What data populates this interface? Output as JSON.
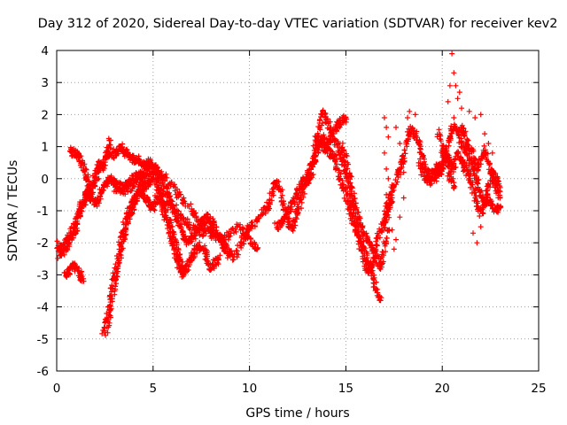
{
  "chart_data": {
    "type": "scatter",
    "title": "Day 312 of 2020, Sidereal Day-to-day VTEC variation (SDTVAR) for receiver kev2",
    "xlabel": "GPS time / hours",
    "ylabel": "SDTVAR / TECUs",
    "xlim": [
      0,
      25
    ],
    "ylim": [
      -6,
      4
    ],
    "xticks": [
      0,
      5,
      10,
      15,
      20,
      25
    ],
    "yticks": [
      -6,
      -5,
      -4,
      -3,
      -2,
      -1,
      0,
      1,
      2,
      3,
      4
    ],
    "grid": true,
    "marker": "+",
    "series_color": "#ff0000",
    "traces": [
      [
        [
          0.0,
          -2.0
        ],
        [
          0.3,
          -2.3
        ],
        [
          0.6,
          -2.1
        ],
        [
          0.8,
          -1.8
        ],
        [
          1.0,
          -1.6
        ],
        [
          1.2,
          -1.0
        ],
        [
          1.4,
          -0.8
        ],
        [
          1.6,
          -0.4
        ],
        [
          1.8,
          -0.6
        ],
        [
          2.0,
          0.2
        ],
        [
          2.2,
          0.5
        ],
        [
          2.4,
          0.3
        ],
        [
          2.6,
          0.8
        ],
        [
          2.8,
          1.2
        ]
      ],
      [
        [
          0.1,
          -2.4
        ],
        [
          0.3,
          -2.2
        ],
        [
          0.5,
          -2.0
        ],
        [
          0.7,
          -1.8
        ],
        [
          0.9,
          -1.5
        ],
        [
          1.1,
          -1.1
        ],
        [
          1.3,
          -0.8
        ],
        [
          1.5,
          -0.6
        ],
        [
          1.7,
          -0.4
        ],
        [
          1.9,
          -0.2
        ],
        [
          2.1,
          0.1
        ],
        [
          2.3,
          0.4
        ],
        [
          2.5,
          0.6
        ]
      ],
      [
        [
          0.4,
          -3.0
        ],
        [
          0.6,
          -2.9
        ],
        [
          0.8,
          -2.7
        ],
        [
          1.0,
          -2.8
        ],
        [
          1.2,
          -3.0
        ],
        [
          1.4,
          -3.2
        ]
      ],
      [
        [
          0.7,
          0.9
        ],
        [
          0.9,
          0.8
        ],
        [
          1.1,
          0.7
        ],
        [
          1.3,
          0.5
        ],
        [
          1.5,
          0.2
        ],
        [
          1.6,
          -0.1
        ],
        [
          1.7,
          -0.3
        ],
        [
          1.8,
          -0.6
        ],
        [
          2.0,
          -0.8
        ],
        [
          2.2,
          -0.6
        ],
        [
          2.4,
          -0.3
        ],
        [
          2.6,
          -0.1
        ],
        [
          2.8,
          0.0
        ],
        [
          3.0,
          -0.1
        ],
        [
          3.2,
          -0.2
        ],
        [
          3.4,
          -0.3
        ],
        [
          3.6,
          -0.2
        ],
        [
          3.8,
          -0.1
        ],
        [
          4.0,
          0.0
        ],
        [
          4.2,
          0.1
        ],
        [
          4.4,
          0.1
        ],
        [
          4.6,
          0.3
        ],
        [
          4.8,
          0.5
        ],
        [
          5.0,
          0.4
        ],
        [
          5.2,
          0.2
        ],
        [
          5.4,
          0.0
        ],
        [
          5.6,
          -0.3
        ],
        [
          5.8,
          -0.6
        ],
        [
          6.0,
          -0.9
        ],
        [
          6.2,
          -1.2
        ],
        [
          6.4,
          -1.5
        ],
        [
          6.6,
          -1.8
        ],
        [
          6.8,
          -2.0
        ],
        [
          7.0,
          -1.9
        ],
        [
          7.2,
          -1.7
        ],
        [
          7.4,
          -1.5
        ],
        [
          7.6,
          -1.3
        ],
        [
          7.8,
          -1.2
        ],
        [
          8.0,
          -1.3
        ],
        [
          8.2,
          -1.5
        ],
        [
          8.4,
          -1.8
        ],
        [
          8.6,
          -2.0
        ],
        [
          8.8,
          -2.2
        ],
        [
          9.0,
          -2.4
        ]
      ],
      [
        [
          2.6,
          0.8
        ],
        [
          2.8,
          0.7
        ],
        [
          3.0,
          0.8
        ],
        [
          3.2,
          0.9
        ],
        [
          3.4,
          1.0
        ],
        [
          3.6,
          0.8
        ],
        [
          3.8,
          0.7
        ],
        [
          4.0,
          0.6
        ],
        [
          4.2,
          0.6
        ],
        [
          4.4,
          0.5
        ],
        [
          4.6,
          0.4
        ],
        [
          4.8,
          0.3
        ]
      ],
      [
        [
          2.4,
          -4.9
        ],
        [
          2.6,
          -4.3
        ],
        [
          2.8,
          -3.7
        ],
        [
          3.0,
          -3.0
        ],
        [
          3.2,
          -2.4
        ],
        [
          3.4,
          -1.8
        ],
        [
          3.6,
          -1.3
        ],
        [
          3.8,
          -0.9
        ],
        [
          4.0,
          -0.6
        ],
        [
          4.2,
          -0.4
        ],
        [
          4.4,
          -0.3
        ],
        [
          4.6,
          -0.2
        ],
        [
          4.8,
          -0.1
        ],
        [
          5.0,
          0.1
        ],
        [
          5.2,
          -0.1
        ],
        [
          5.4,
          -0.4
        ],
        [
          5.6,
          -0.8
        ],
        [
          5.8,
          -1.3
        ],
        [
          6.0,
          -1.7
        ],
        [
          6.2,
          -2.2
        ],
        [
          6.4,
          -2.6
        ],
        [
          6.6,
          -2.9
        ],
        [
          6.8,
          -2.7
        ],
        [
          7.0,
          -2.4
        ],
        [
          7.2,
          -2.2
        ],
        [
          7.4,
          -2.1
        ],
        [
          7.6,
          -2.2
        ],
        [
          7.8,
          -2.5
        ],
        [
          8.0,
          -2.8
        ],
        [
          8.2,
          -2.6
        ],
        [
          8.4,
          -2.5
        ]
      ],
      [
        [
          2.6,
          -4.8
        ],
        [
          2.8,
          -4.0
        ],
        [
          3.0,
          -3.3
        ],
        [
          3.2,
          -2.7
        ],
        [
          3.4,
          -2.1
        ],
        [
          3.6,
          -1.6
        ],
        [
          3.8,
          -1.1
        ],
        [
          4.0,
          -0.8
        ],
        [
          4.2,
          -0.6
        ],
        [
          4.4,
          -0.4
        ],
        [
          4.6,
          -0.6
        ],
        [
          4.8,
          -0.8
        ],
        [
          5.0,
          -0.9
        ],
        [
          5.2,
          -0.6
        ],
        [
          5.4,
          -0.8
        ],
        [
          5.6,
          -1.1
        ],
        [
          5.8,
          -1.5
        ],
        [
          6.0,
          -1.9
        ],
        [
          6.2,
          -2.4
        ],
        [
          6.4,
          -2.8
        ],
        [
          6.6,
          -3.0
        ]
      ],
      [
        [
          3.0,
          -0.3
        ],
        [
          3.4,
          -0.4
        ],
        [
          3.8,
          -0.3
        ],
        [
          4.2,
          -0.1
        ],
        [
          4.6,
          0.1
        ],
        [
          5.0,
          0.3
        ],
        [
          5.4,
          0.2
        ],
        [
          5.8,
          -0.1
        ],
        [
          6.2,
          -0.4
        ],
        [
          6.6,
          -0.7
        ],
        [
          7.0,
          -1.0
        ],
        [
          7.4,
          -1.3
        ],
        [
          7.8,
          -1.6
        ],
        [
          8.2,
          -1.8
        ],
        [
          8.6,
          -1.9
        ],
        [
          9.0,
          -1.7
        ],
        [
          9.4,
          -1.5
        ],
        [
          9.8,
          -1.7
        ],
        [
          10.2,
          -2.0
        ],
        [
          10.4,
          -2.2
        ]
      ],
      [
        [
          5.2,
          -0.3
        ],
        [
          5.6,
          -0.5
        ],
        [
          6.0,
          -0.8
        ],
        [
          6.4,
          -1.2
        ],
        [
          6.8,
          -1.4
        ],
        [
          7.2,
          -1.6
        ],
        [
          7.6,
          -1.7
        ],
        [
          8.0,
          -1.6
        ],
        [
          8.4,
          -1.8
        ],
        [
          8.8,
          -2.2
        ],
        [
          9.2,
          -2.5
        ],
        [
          9.6,
          -2.0
        ],
        [
          9.8,
          -1.7
        ],
        [
          10.0,
          -1.5
        ],
        [
          10.4,
          -1.3
        ],
        [
          10.8,
          -1.0
        ],
        [
          11.0,
          -0.8
        ],
        [
          11.2,
          -0.4
        ],
        [
          11.4,
          -0.1
        ],
        [
          11.6,
          -0.4
        ],
        [
          11.8,
          -0.9
        ],
        [
          12.0,
          -1.3
        ],
        [
          12.2,
          -1.6
        ],
        [
          12.4,
          -1.2
        ],
        [
          12.6,
          -0.8
        ],
        [
          12.8,
          -0.4
        ],
        [
          13.0,
          0.0
        ],
        [
          13.2,
          0.4
        ],
        [
          13.4,
          0.9
        ],
        [
          13.6,
          1.4
        ],
        [
          13.8,
          2.1
        ],
        [
          14.0,
          1.9
        ],
        [
          14.2,
          1.5
        ],
        [
          14.4,
          1.2
        ],
        [
          14.6,
          1.0
        ],
        [
          14.8,
          0.6
        ],
        [
          15.0,
          0.2
        ],
        [
          15.2,
          -0.4
        ],
        [
          15.4,
          -1.0
        ],
        [
          15.6,
          -1.6
        ],
        [
          15.8,
          -2.2
        ],
        [
          16.0,
          -2.7
        ],
        [
          16.2,
          -2.9
        ],
        [
          16.4,
          -2.6
        ],
        [
          16.6,
          -2.0
        ],
        [
          16.8,
          -1.6
        ],
        [
          17.0,
          -1.4
        ],
        [
          17.2,
          -1.0
        ],
        [
          17.4,
          -0.6
        ]
      ],
      [
        [
          11.4,
          -1.5
        ],
        [
          11.6,
          -1.4
        ],
        [
          11.8,
          -1.2
        ],
        [
          12.0,
          -1.0
        ],
        [
          12.2,
          -0.8
        ],
        [
          12.4,
          -0.6
        ],
        [
          12.6,
          -0.3
        ],
        [
          12.8,
          0.0
        ],
        [
          13.0,
          -0.1
        ],
        [
          13.2,
          0.1
        ],
        [
          13.4,
          0.6
        ],
        [
          13.6,
          1.0
        ],
        [
          13.8,
          1.3
        ],
        [
          14.0,
          1.1
        ],
        [
          14.2,
          1.3
        ],
        [
          14.4,
          1.5
        ],
        [
          14.6,
          1.7
        ],
        [
          14.8,
          1.8
        ],
        [
          15.0,
          1.9
        ]
      ],
      [
        [
          13.4,
          1.3
        ],
        [
          13.6,
          1.1
        ],
        [
          13.8,
          1.0
        ],
        [
          14.0,
          0.9
        ],
        [
          14.2,
          0.8
        ],
        [
          14.4,
          0.6
        ],
        [
          14.6,
          0.2
        ],
        [
          14.8,
          -0.2
        ],
        [
          15.0,
          -0.5
        ],
        [
          15.2,
          -0.9
        ],
        [
          15.4,
          -1.3
        ],
        [
          15.6,
          -1.7
        ],
        [
          15.8,
          -2.0
        ],
        [
          16.0,
          -2.3
        ],
        [
          16.2,
          -2.6
        ],
        [
          16.4,
          -3.1
        ],
        [
          16.6,
          -3.5
        ],
        [
          16.8,
          -3.8
        ]
      ],
      [
        [
          14.8,
          1.0
        ],
        [
          15.0,
          0.6
        ],
        [
          15.2,
          0.0
        ],
        [
          15.4,
          -0.6
        ],
        [
          15.6,
          -1.1
        ],
        [
          15.8,
          -1.5
        ],
        [
          16.0,
          -1.8
        ],
        [
          16.2,
          -2.0
        ],
        [
          16.4,
          -2.2
        ],
        [
          16.6,
          -2.5
        ],
        [
          16.8,
          -2.8
        ],
        [
          17.0,
          -2.2
        ],
        [
          17.2,
          -1.6
        ]
      ],
      [
        [
          17.0,
          -1.3
        ],
        [
          17.2,
          -0.8
        ],
        [
          17.4,
          -0.4
        ],
        [
          17.6,
          0.0
        ],
        [
          17.8,
          0.3
        ],
        [
          18.0,
          0.6
        ],
        [
          18.2,
          1.2
        ],
        [
          18.4,
          1.6
        ],
        [
          18.6,
          1.4
        ],
        [
          18.8,
          1.0
        ],
        [
          19.0,
          0.6
        ],
        [
          19.2,
          0.3
        ],
        [
          19.4,
          0.1
        ],
        [
          19.6,
          0.2
        ],
        [
          19.8,
          0.4
        ],
        [
          20.0,
          0.2
        ],
        [
          20.2,
          0.9
        ],
        [
          20.4,
          1.3
        ],
        [
          20.6,
          1.7
        ],
        [
          20.8,
          1.5
        ],
        [
          21.0,
          1.1
        ],
        [
          21.2,
          0.9
        ],
        [
          21.4,
          0.6
        ],
        [
          21.6,
          0.3
        ],
        [
          21.8,
          0.0
        ],
        [
          22.0,
          -0.5
        ],
        [
          22.2,
          -0.8
        ],
        [
          22.4,
          -0.6
        ],
        [
          22.6,
          -0.9
        ],
        [
          22.8,
          -1.0
        ],
        [
          23.0,
          -0.9
        ]
      ],
      [
        [
          18.8,
          0.5
        ],
        [
          19.0,
          0.2
        ],
        [
          19.2,
          0.0
        ],
        [
          19.4,
          -0.1
        ],
        [
          19.6,
          0.0
        ],
        [
          19.8,
          0.1
        ],
        [
          20.0,
          0.4
        ],
        [
          20.2,
          0.8
        ],
        [
          20.4,
          0.5
        ],
        [
          20.6,
          0.3
        ],
        [
          20.8,
          0.8
        ],
        [
          21.0,
          0.5
        ],
        [
          21.2,
          0.3
        ],
        [
          21.4,
          0.1
        ],
        [
          21.6,
          -0.3
        ],
        [
          21.8,
          -0.8
        ],
        [
          22.0,
          -1.1
        ],
        [
          22.2,
          -0.7
        ],
        [
          22.4,
          -0.3
        ],
        [
          22.6,
          0.2
        ],
        [
          22.8,
          0.0
        ],
        [
          23.0,
          -0.4
        ]
      ],
      [
        [
          21.0,
          1.6
        ],
        [
          21.2,
          1.3
        ],
        [
          21.4,
          1.0
        ],
        [
          21.6,
          0.7
        ],
        [
          21.8,
          0.3
        ],
        [
          22.0,
          0.6
        ],
        [
          22.2,
          0.9
        ],
        [
          22.4,
          0.5
        ],
        [
          22.6,
          0.1
        ],
        [
          22.8,
          -0.3
        ],
        [
          23.0,
          -0.6
        ]
      ],
      [
        [
          19.8,
          1.5
        ],
        [
          20.0,
          1.0
        ],
        [
          20.2,
          0.6
        ],
        [
          20.4,
          0.1
        ],
        [
          20.6,
          -0.3
        ]
      ]
    ],
    "scattered_points": [
      [
        20.5,
        3.9
      ],
      [
        20.6,
        3.3
      ],
      [
        20.7,
        2.9
      ],
      [
        20.8,
        2.5
      ],
      [
        20.9,
        2.7
      ],
      [
        21.0,
        2.2
      ],
      [
        20.4,
        2.9
      ],
      [
        20.3,
        2.4
      ],
      [
        20.6,
        1.9
      ],
      [
        17.0,
        1.9
      ],
      [
        17.1,
        1.6
      ],
      [
        17.2,
        1.3
      ],
      [
        17.0,
        0.8
      ],
      [
        17.1,
        0.3
      ],
      [
        17.2,
        0.0
      ],
      [
        17.1,
        -0.5
      ],
      [
        17.3,
        -0.9
      ],
      [
        17.4,
        -1.6
      ],
      [
        17.6,
        -1.9
      ],
      [
        17.8,
        -1.2
      ],
      [
        18.0,
        -0.6
      ],
      [
        17.6,
        1.6
      ],
      [
        17.8,
        1.1
      ],
      [
        17.9,
        0.6
      ],
      [
        18.2,
        1.9
      ],
      [
        18.3,
        2.1
      ],
      [
        18.6,
        2.0
      ],
      [
        18.0,
        0.2
      ],
      [
        17.5,
        -2.2
      ],
      [
        21.6,
        -1.7
      ],
      [
        21.8,
        -2.0
      ],
      [
        22.0,
        -1.5
      ],
      [
        22.2,
        1.4
      ],
      [
        22.0,
        2.0
      ],
      [
        21.4,
        2.1
      ],
      [
        21.7,
        1.9
      ],
      [
        22.4,
        1.1
      ],
      [
        22.6,
        0.8
      ]
    ]
  }
}
